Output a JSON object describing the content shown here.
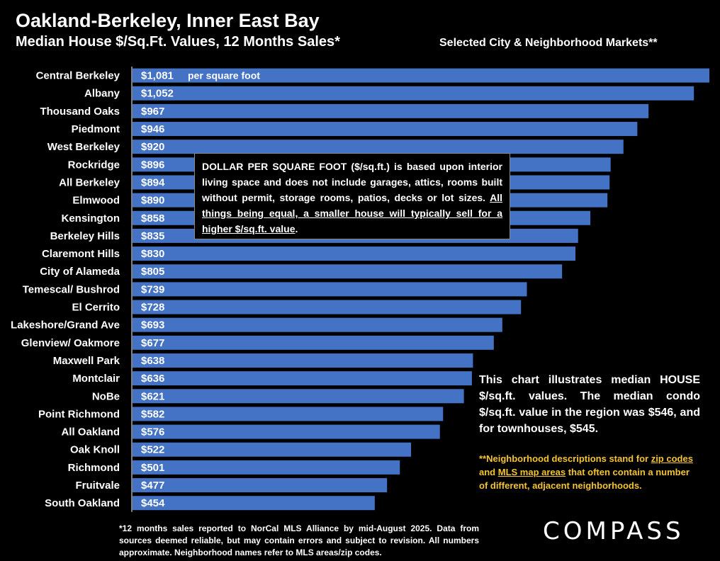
{
  "header": {
    "title": "Oakland-Berkeley, Inner East Bay",
    "subtitle": "Median House $/Sq.Ft. Values, 12 Months Sales*",
    "subtitle_right": "Selected City & Neighborhood Markets**"
  },
  "chart_data": {
    "type": "bar",
    "orientation": "horizontal",
    "title": "Median House $/Sq.Ft. Values, 12 Months Sales*",
    "value_unit_label": "per square foot",
    "categories": [
      "Central Berkeley",
      "Albany",
      "Thousand Oaks",
      "Piedmont",
      "West Berkeley",
      "Rockridge",
      "All Berkeley",
      "Elmwood",
      "Kensington",
      "Berkeley Hills",
      "Claremont Hills",
      "City of Alameda",
      "Temescal/ Bushrod",
      "El Cerrito",
      "Lakeshore/Grand Ave",
      "Glenview/ Oakmore",
      "Maxwell Park",
      "Montclair",
      "NoBe",
      "Point Richmond",
      "All Oakland",
      "Oak Knoll",
      "Richmond",
      "Fruitvale",
      "South Oakland"
    ],
    "values": [
      1081,
      1052,
      967,
      946,
      920,
      896,
      894,
      890,
      858,
      835,
      830,
      805,
      739,
      728,
      693,
      677,
      638,
      636,
      621,
      582,
      576,
      522,
      501,
      477,
      454
    ],
    "labels": [
      "$1,081",
      "$1,052",
      "$967",
      "$946",
      "$920",
      "$896",
      "$894",
      "$890",
      "$858",
      "$835",
      "$830",
      "$805",
      "$739",
      "$728",
      "$693",
      "$677",
      "$638",
      "$636",
      "$621",
      "$582",
      "$576",
      "$522",
      "$501",
      "$477",
      "$454"
    ],
    "xlim": [
      0,
      1081
    ],
    "color": "#4472c4"
  },
  "infobox": {
    "text": "DOLLAR PER SQUARE FOOT ($/sq.ft.) is based upon interior living space and does not include garages, attics, rooms built without permit, storage rooms, patios, decks or lot sizes.",
    "underlined": "All things being equal, a smaller house will typically sell for a higher $/sq.ft. value",
    "end": "."
  },
  "notes": {
    "median_note": "This chart illustrates median HOUSE $/sq.ft. values. The median condo $/sq.ft. value in the region was $546, and for townhouses, $545.",
    "neighborhood_pre": "**Neighborhood descriptions stand for ",
    "neighborhood_link1": "zip codes",
    "neighborhood_mid": " and ",
    "neighborhood_link2": "MLS map areas",
    "neighborhood_post": " that often contain a number of different, adjacent neighborhoods."
  },
  "footnote": "*12 months sales reported to NorCal MLS Alliance by mid-August 2025. Data from sources deemed reliable, but may contain errors and subject to revision. All numbers approximate. Neighborhood names refer to MLS areas/zip codes.",
  "logo": "COMPASS"
}
